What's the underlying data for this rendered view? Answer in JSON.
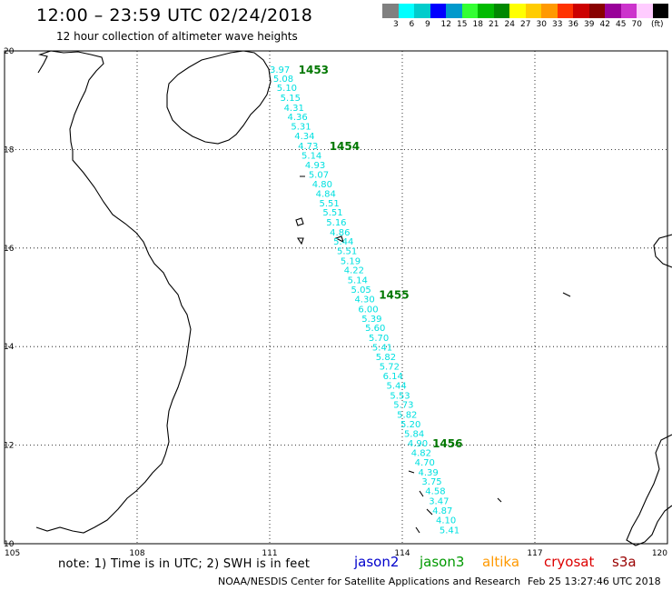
{
  "header": {
    "title": "12:00 – 23:59 UTC 02/24/2018",
    "subtitle": "12 hour collection of altimeter wave heights"
  },
  "scale": {
    "swatches": [
      {
        "color": "#808080"
      },
      {
        "color": "#00ffff"
      },
      {
        "color": "#00cccc"
      },
      {
        "color": "#0000ff"
      },
      {
        "color": "#0099cc"
      },
      {
        "color": "#33ff33"
      },
      {
        "color": "#00bb00"
      },
      {
        "color": "#008800"
      },
      {
        "color": "#ffff00"
      },
      {
        "color": "#ffcc00"
      },
      {
        "color": "#ff9900"
      },
      {
        "color": "#ff3300"
      },
      {
        "color": "#cc0000"
      },
      {
        "color": "#880000"
      },
      {
        "color": "#990099"
      },
      {
        "color": "#cc33cc"
      },
      {
        "color": "#ffccff"
      },
      {
        "color": "#000000"
      }
    ],
    "labels": [
      "3",
      "6",
      "9",
      "12",
      "15",
      "18",
      "21",
      "24",
      "27",
      "30",
      "33",
      "36",
      "39",
      "42",
      "45",
      "70"
    ],
    "unit": "(ft)"
  },
  "map": {
    "lon_min": 105,
    "lon_max": 120,
    "lat_min": 10,
    "lat_max": 20,
    "x_ticks": [
      "105",
      "108",
      "111",
      "114",
      "117",
      "120"
    ],
    "y_ticks": [
      "20",
      "18",
      "16",
      "14",
      "12",
      "10"
    ],
    "track_color": "#00e0e0",
    "marker_color": "#007700",
    "track_points": [
      {
        "lon": 111.0,
        "lat": 19.63,
        "v": "3.97"
      },
      {
        "lon": 111.08,
        "lat": 19.45,
        "v": "5.08"
      },
      {
        "lon": 111.16,
        "lat": 19.26,
        "v": "5.10"
      },
      {
        "lon": 111.24,
        "lat": 19.06,
        "v": "5.15"
      },
      {
        "lon": 111.32,
        "lat": 18.86,
        "v": "4.31"
      },
      {
        "lon": 111.4,
        "lat": 18.67,
        "v": "4.36"
      },
      {
        "lon": 111.48,
        "lat": 18.48,
        "v": "5.31"
      },
      {
        "lon": 111.56,
        "lat": 18.28,
        "v": "4.34"
      },
      {
        "lon": 111.64,
        "lat": 18.08,
        "v": "4.73"
      },
      {
        "lon": 111.72,
        "lat": 17.89,
        "v": "5.14"
      },
      {
        "lon": 111.8,
        "lat": 17.69,
        "v": "4.93"
      },
      {
        "lon": 111.88,
        "lat": 17.5,
        "v": "5.07"
      },
      {
        "lon": 111.96,
        "lat": 17.31,
        "v": "4.80"
      },
      {
        "lon": 112.04,
        "lat": 17.11,
        "v": "4.84"
      },
      {
        "lon": 112.12,
        "lat": 16.92,
        "v": "5.51"
      },
      {
        "lon": 112.2,
        "lat": 16.73,
        "v": "5.51"
      },
      {
        "lon": 112.28,
        "lat": 16.53,
        "v": "5.16"
      },
      {
        "lon": 112.36,
        "lat": 16.33,
        "v": "4.86"
      },
      {
        "lon": 112.44,
        "lat": 16.14,
        "v": "5.44"
      },
      {
        "lon": 112.52,
        "lat": 15.95,
        "v": "5.51"
      },
      {
        "lon": 112.6,
        "lat": 15.75,
        "v": "5.19"
      },
      {
        "lon": 112.68,
        "lat": 15.56,
        "v": "4.22"
      },
      {
        "lon": 112.76,
        "lat": 15.36,
        "v": "5.14"
      },
      {
        "lon": 112.84,
        "lat": 15.17,
        "v": "5.05"
      },
      {
        "lon": 112.92,
        "lat": 14.97,
        "v": "4.30"
      },
      {
        "lon": 113.0,
        "lat": 14.77,
        "v": "6.00"
      },
      {
        "lon": 113.08,
        "lat": 14.58,
        "v": "5.39"
      },
      {
        "lon": 113.16,
        "lat": 14.39,
        "v": "5.60"
      },
      {
        "lon": 113.24,
        "lat": 14.19,
        "v": "5.70"
      },
      {
        "lon": 113.32,
        "lat": 13.99,
        "v": "5.41"
      },
      {
        "lon": 113.4,
        "lat": 13.8,
        "v": "5.82"
      },
      {
        "lon": 113.48,
        "lat": 13.61,
        "v": "5.72"
      },
      {
        "lon": 113.56,
        "lat": 13.41,
        "v": "6.14"
      },
      {
        "lon": 113.64,
        "lat": 13.22,
        "v": "5.44"
      },
      {
        "lon": 113.72,
        "lat": 13.02,
        "v": "5.53"
      },
      {
        "lon": 113.8,
        "lat": 12.83,
        "v": "5.73"
      },
      {
        "lon": 113.88,
        "lat": 12.63,
        "v": "5.82"
      },
      {
        "lon": 113.96,
        "lat": 12.44,
        "v": "5.20"
      },
      {
        "lon": 114.04,
        "lat": 12.24,
        "v": "5.84"
      },
      {
        "lon": 114.12,
        "lat": 12.05,
        "v": "4.90"
      },
      {
        "lon": 114.2,
        "lat": 11.85,
        "v": "4.82"
      },
      {
        "lon": 114.28,
        "lat": 11.66,
        "v": "4.70"
      },
      {
        "lon": 114.36,
        "lat": 11.46,
        "v": "4.39"
      },
      {
        "lon": 114.44,
        "lat": 11.27,
        "v": "3.75"
      },
      {
        "lon": 114.52,
        "lat": 11.08,
        "v": "4.58"
      },
      {
        "lon": 114.6,
        "lat": 10.88,
        "v": "3.47"
      },
      {
        "lon": 114.68,
        "lat": 10.68,
        "v": "4.87"
      },
      {
        "lon": 114.76,
        "lat": 10.49,
        "v": "4.10"
      },
      {
        "lon": 114.84,
        "lat": 10.29,
        "v": "5.41"
      }
    ],
    "time_markers": [
      {
        "lon": 111.65,
        "lat": 19.63,
        "label": "1453"
      },
      {
        "lon": 112.35,
        "lat": 18.08,
        "label": "1454"
      },
      {
        "lon": 113.47,
        "lat": 15.06,
        "label": "1455"
      },
      {
        "lon": 114.68,
        "lat": 12.05,
        "label": "1456"
      }
    ]
  },
  "footer": {
    "note": "note:  1) Time is in UTC;  2) SWH is in feet",
    "legend": [
      {
        "name": "jason2",
        "color": "#0000cc"
      },
      {
        "name": "jason3",
        "color": "#009900"
      },
      {
        "name": "altika",
        "color": "#ff9900"
      },
      {
        "name": "cryosat",
        "color": "#dd0000"
      },
      {
        "name": "s3a",
        "color": "#990000"
      }
    ],
    "credit": "NOAA/NESDIS Center for Satellite Applications and Research",
    "timestamp": "Feb 25 13:27:46 UTC 2018"
  }
}
